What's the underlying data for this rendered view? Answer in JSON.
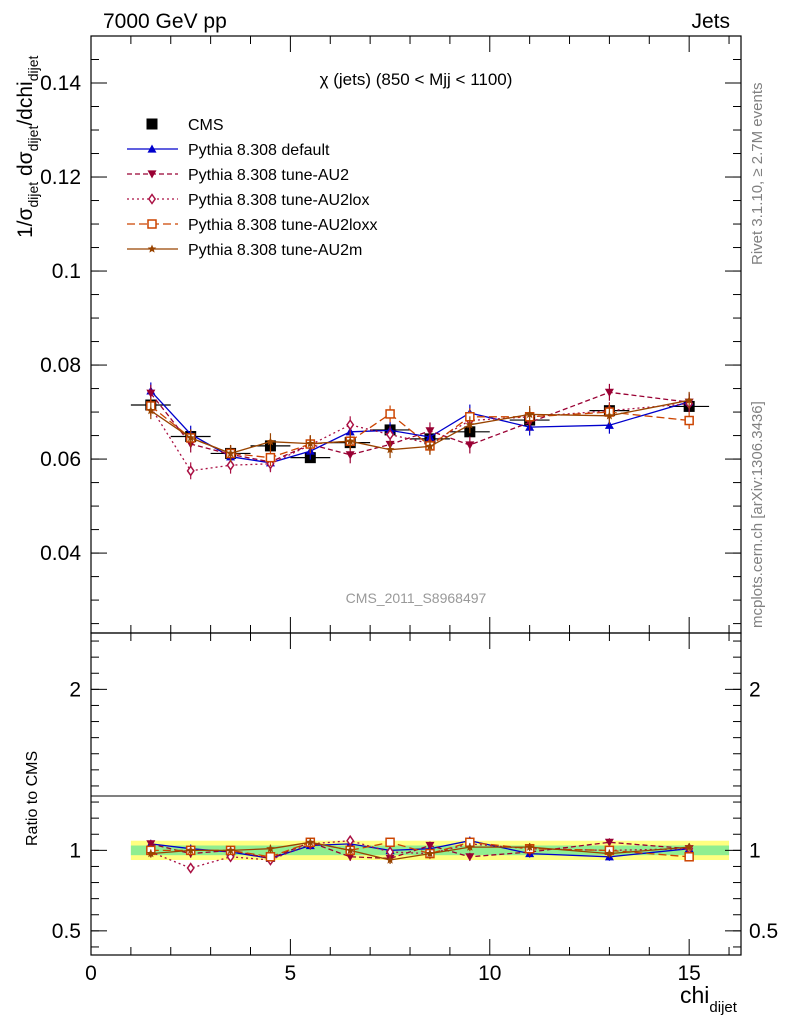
{
  "header": {
    "left": "7000 GeV pp",
    "right": "Jets"
  },
  "side_labels": {
    "rivet": "Rivet 3.1.10, ≥ 2.7M events",
    "mcplots": "mcplots.cern.ch [arXiv:1306.3436]"
  },
  "plot_title": "χ (jets) (850 < Mjj < 1100)",
  "watermark": "CMS_2011_S8968497",
  "colors": {
    "data": "#000000",
    "default": "#0000cc",
    "AU2": "#990033",
    "AU2lox": "#aa1144",
    "AU2loxx": "#cc4400",
    "AU2m": "#994400",
    "band_inner": "#90ee90",
    "band_outer": "#ffff80"
  },
  "chart_data": [
    {
      "type": "line",
      "panel": "main",
      "ylabel": "1/σ dijet dσ dijet /dchi dijet",
      "ylim": [
        0.023,
        0.15
      ],
      "yticks": [
        "0.04",
        "0.06",
        "0.08",
        "0.1",
        "0.12",
        "0.14"
      ],
      "ytick_values": [
        0.04,
        0.06,
        0.08,
        0.1,
        0.12,
        0.14
      ],
      "xlim": [
        0,
        16.3
      ],
      "legend_placement": "top-left",
      "x": [
        1.5,
        2.5,
        3.5,
        4.5,
        5.5,
        6.5,
        7.5,
        8.5,
        9.5,
        11,
        13,
        15
      ],
      "series": [
        {
          "name": "CMS",
          "key": "data",
          "marker": "square",
          "values": [
            0.0715,
            0.0648,
            0.0612,
            0.0628,
            0.0603,
            0.0635,
            0.0662,
            0.0643,
            0.0658,
            0.0683,
            0.0703,
            0.0712
          ]
        },
        {
          "name": "Pythia 8.308 default",
          "key": "default",
          "marker": "triangle-up",
          "values": [
            0.0745,
            0.0653,
            0.0605,
            0.0592,
            0.0617,
            0.0658,
            0.0661,
            0.0647,
            0.0698,
            0.0668,
            0.0672,
            0.0722
          ]
        },
        {
          "name": "Pythia 8.308 tune-AU2",
          "key": "AU2",
          "marker": "triangle-down",
          "values": [
            0.074,
            0.0632,
            0.061,
            0.0594,
            0.0631,
            0.0609,
            0.0631,
            0.066,
            0.063,
            0.0678,
            0.0742,
            0.0721
          ]
        },
        {
          "name": "Pythia 8.308 tune-AU2lox",
          "key": "AU2lox",
          "marker": "diamond-open",
          "values": [
            0.071,
            0.0575,
            0.0587,
            0.059,
            0.063,
            0.0673,
            0.0652,
            0.0633,
            0.0682,
            0.069,
            0.0703,
            0.0718
          ]
        },
        {
          "name": "Pythia 8.308 tune-AU2loxx",
          "key": "AU2loxx",
          "marker": "square-open",
          "values": [
            0.0713,
            0.0645,
            0.0612,
            0.0603,
            0.0632,
            0.0638,
            0.0696,
            0.0628,
            0.069,
            0.069,
            0.07,
            0.0682
          ]
        },
        {
          "name": "Pythia 8.308 tune-AU2m",
          "key": "AU2m",
          "marker": "star",
          "values": [
            0.0703,
            0.0645,
            0.0612,
            0.0637,
            0.0633,
            0.0638,
            0.062,
            0.0627,
            0.0673,
            0.0695,
            0.0692,
            0.0725
          ]
        }
      ]
    },
    {
      "type": "line",
      "panel": "ratio",
      "ylabel": "Ratio to CMS",
      "xlabel": "chi dijet",
      "ylim": [
        0.35,
        2.35
      ],
      "yticks": [
        "0.5",
        "1",
        "2"
      ],
      "ytick_values": [
        0.5,
        1,
        2
      ],
      "xticks": [
        "0",
        "5",
        "10",
        "15"
      ],
      "xtick_values": [
        0,
        5,
        10,
        15
      ],
      "xlim": [
        0,
        16.3
      ],
      "band_x_range": [
        1,
        16
      ],
      "band_inner": [
        0.97,
        1.03
      ],
      "band_outer": [
        0.94,
        1.06
      ],
      "x": [
        1.5,
        2.5,
        3.5,
        4.5,
        5.5,
        6.5,
        7.5,
        8.5,
        9.5,
        11,
        13,
        15
      ],
      "series": [
        {
          "key": "default",
          "marker": "triangle-up",
          "values": [
            1.04,
            1.01,
            0.99,
            0.95,
            1.03,
            1.04,
            1.0,
            1.01,
            1.06,
            0.98,
            0.96,
            1.01
          ]
        },
        {
          "key": "AU2",
          "marker": "triangle-down",
          "values": [
            1.04,
            0.98,
            1.0,
            0.95,
            1.05,
            0.96,
            0.95,
            1.03,
            0.96,
            0.99,
            1.05,
            1.01
          ]
        },
        {
          "key": "AU2lox",
          "marker": "diamond-open",
          "values": [
            0.99,
            0.89,
            0.96,
            0.94,
            1.04,
            1.06,
            0.99,
            0.98,
            1.04,
            1.01,
            1.0,
            1.01
          ]
        },
        {
          "key": "AU2loxx",
          "marker": "square-open",
          "values": [
            1.0,
            1.0,
            1.0,
            0.96,
            1.05,
            1.0,
            1.05,
            0.98,
            1.05,
            1.01,
            1.0,
            0.96
          ]
        },
        {
          "key": "AU2m",
          "marker": "star",
          "values": [
            0.98,
            1.0,
            1.0,
            1.01,
            1.05,
            1.0,
            0.94,
            0.98,
            1.02,
            1.02,
            0.98,
            1.02
          ]
        }
      ]
    }
  ]
}
